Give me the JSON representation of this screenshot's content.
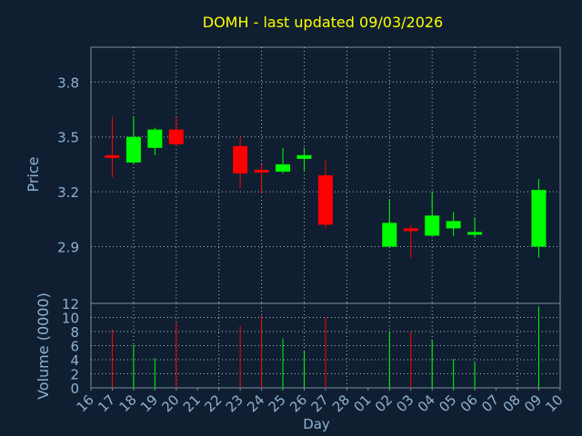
{
  "colors": {
    "background": "#0f1f31",
    "title": "#ffff00",
    "axis_text": "#8fb1d2",
    "frame": "#7a8ea3",
    "grid": "#c8d2dc",
    "up": "#00ff00",
    "down": "#ff0000",
    "volume_up": "#00ff00",
    "volume_down": "#ff0000"
  },
  "chart_data": {
    "type": "candlestick",
    "title": "DOMH - last updated 09/03/2026",
    "ylabel": "Price",
    "volume_ylabel": "Volume (0000)",
    "xlabel": "Day",
    "ylim": [
      2.59,
      3.99
    ],
    "yticks": [
      2.9,
      3.2,
      3.5,
      3.8
    ],
    "ytick_labels": [
      "2.9",
      "3.2",
      "3.5",
      "3.8"
    ],
    "volume_ylim": [
      0,
      12
    ],
    "volume_yticks": [
      0,
      2,
      4,
      6,
      8,
      10,
      12
    ],
    "xtick_labels": [
      "16",
      "17",
      "18",
      "19",
      "20",
      "21",
      "22",
      "23",
      "24",
      "25",
      "26",
      "27",
      "28",
      "01",
      "02",
      "03",
      "04",
      "05",
      "06",
      "07",
      "08",
      "09",
      "10"
    ],
    "grid": true,
    "candles": [
      {
        "day": "17",
        "open": 3.4,
        "high": 3.61,
        "low": 3.28,
        "close": 3.39,
        "volume": 8.3
      },
      {
        "day": "18",
        "open": 3.36,
        "high": 3.61,
        "low": 3.35,
        "close": 3.5,
        "volume": 6.1
      },
      {
        "day": "19",
        "open": 3.44,
        "high": 3.55,
        "low": 3.4,
        "close": 3.54,
        "volume": 4.2
      },
      {
        "day": "20",
        "open": 3.54,
        "high": 3.61,
        "low": 3.45,
        "close": 3.46,
        "volume": 9.3
      },
      {
        "day": "23",
        "open": 3.45,
        "high": 3.5,
        "low": 3.22,
        "close": 3.3,
        "volume": 8.8
      },
      {
        "day": "24",
        "open": 3.32,
        "high": 3.35,
        "low": 3.19,
        "close": 3.31,
        "volume": 10.2
      },
      {
        "day": "25",
        "open": 3.31,
        "high": 3.44,
        "low": 3.3,
        "close": 3.35,
        "volume": 7.0
      },
      {
        "day": "26",
        "open": 3.38,
        "high": 3.44,
        "low": 3.31,
        "close": 3.4,
        "volume": 5.2
      },
      {
        "day": "27",
        "open": 3.29,
        "high": 3.37,
        "low": 3.0,
        "close": 3.02,
        "volume": 10.0
      },
      {
        "day": "02",
        "open": 2.9,
        "high": 3.16,
        "low": 2.9,
        "close": 3.03,
        "volume": 8.0
      },
      {
        "day": "03",
        "open": 3.0,
        "high": 3.02,
        "low": 2.84,
        "close": 2.99,
        "volume": 8.0
      },
      {
        "day": "04",
        "open": 2.96,
        "high": 3.2,
        "low": 2.96,
        "close": 3.07,
        "volume": 6.8
      },
      {
        "day": "05",
        "open": 3.0,
        "high": 3.09,
        "low": 2.96,
        "close": 3.04,
        "volume": 4.1
      },
      {
        "day": "06",
        "open": 2.97,
        "high": 3.06,
        "low": 2.95,
        "close": 2.98,
        "volume": 3.6
      },
      {
        "day": "09",
        "open": 2.9,
        "high": 3.27,
        "low": 2.84,
        "close": 3.21,
        "volume": 11.6
      }
    ]
  }
}
